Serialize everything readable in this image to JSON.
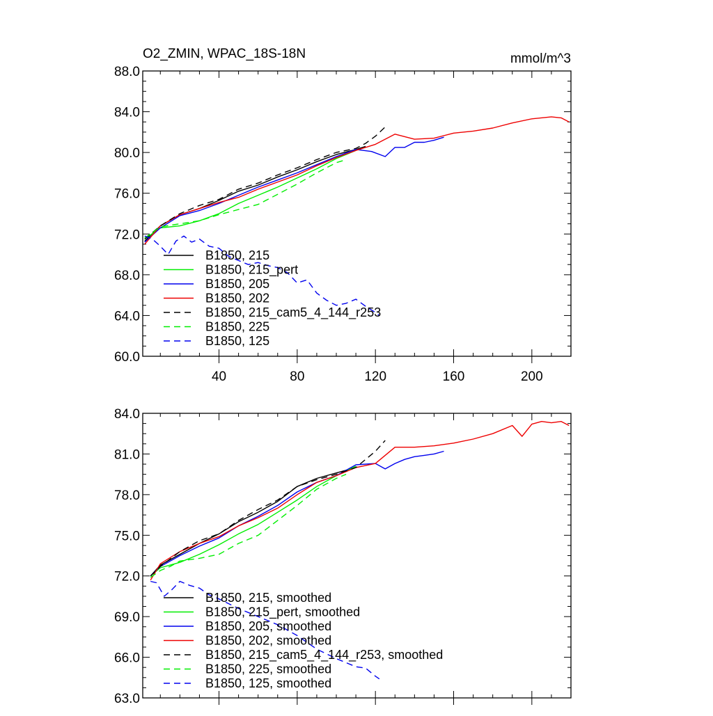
{
  "chart_data": [
    {
      "type": "line",
      "title": "O2_ZMIN, WPAC_18S-18N",
      "units": "mmol/m^3",
      "xlim": [
        1,
        220
      ],
      "ylim": [
        60,
        88
      ],
      "xticks": [
        40,
        80,
        120,
        160,
        200
      ],
      "xtick_labels": [
        "40",
        "80",
        "120",
        "160",
        "200"
      ],
      "yticks": [
        60,
        64,
        68,
        72,
        76,
        80,
        84,
        88
      ],
      "ytick_labels": [
        "60.0",
        "64.0",
        "68.0",
        "72.0",
        "76.0",
        "80.0",
        "84.0",
        "88.0"
      ],
      "legend_position": "bottom-left",
      "series": [
        {
          "name": "B1850, 215",
          "color": "#000000",
          "dash": "solid",
          "x": [
            2,
            10,
            20,
            30,
            40,
            50,
            60,
            70,
            80,
            90,
            100,
            110,
            115
          ],
          "y": [
            71.3,
            72.8,
            73.9,
            74.5,
            75.3,
            76.2,
            76.8,
            77.6,
            78.3,
            79.1,
            79.8,
            80.3,
            80.6
          ]
        },
        {
          "name": "B1850, 215_pert",
          "color": "#00ee00",
          "dash": "solid",
          "x": [
            2,
            10,
            20,
            30,
            40,
            50,
            60,
            70,
            80,
            90,
            100,
            110
          ],
          "y": [
            71.5,
            72.6,
            72.8,
            73.3,
            74.0,
            75.0,
            75.8,
            76.6,
            77.5,
            78.4,
            79.4,
            80.2
          ]
        },
        {
          "name": "B1850, 205",
          "color": "#0000ee",
          "dash": "solid",
          "x": [
            2,
            10,
            20,
            30,
            40,
            50,
            60,
            70,
            80,
            90,
            100,
            110,
            118,
            125,
            130,
            135,
            140,
            145,
            150,
            155
          ],
          "y": [
            71.2,
            72.6,
            73.8,
            74.3,
            75.0,
            75.8,
            76.6,
            77.3,
            78.0,
            78.8,
            79.6,
            80.3,
            80.1,
            79.6,
            80.5,
            80.5,
            81.0,
            81.0,
            81.2,
            81.5
          ]
        },
        {
          "name": "B1850, 202",
          "color": "#ee0000",
          "dash": "solid",
          "x": [
            2,
            10,
            20,
            30,
            40,
            50,
            60,
            70,
            80,
            90,
            100,
            110,
            120,
            130,
            140,
            150,
            160,
            170,
            180,
            190,
            200,
            210,
            215,
            219
          ],
          "y": [
            71.0,
            72.8,
            73.9,
            74.5,
            75.1,
            75.6,
            76.4,
            77.1,
            77.8,
            78.7,
            79.5,
            80.2,
            80.8,
            81.8,
            81.3,
            81.4,
            81.9,
            82.1,
            82.4,
            82.9,
            83.3,
            83.5,
            83.4,
            83.0
          ]
        },
        {
          "name": "B1850, 215_cam5_4_144_r253",
          "color": "#000000",
          "dash": "dashed",
          "x": [
            2,
            10,
            20,
            30,
            40,
            50,
            60,
            70,
            80,
            90,
            100,
            110,
            115,
            120,
            125
          ],
          "y": [
            71.5,
            72.8,
            74.0,
            74.8,
            75.4,
            76.4,
            77.0,
            77.8,
            78.5,
            79.3,
            80.0,
            80.4,
            80.9,
            81.6,
            82.5
          ]
        },
        {
          "name": "B1850, 225",
          "color": "#00ee00",
          "dash": "dashed",
          "x": [
            2,
            10,
            20,
            30,
            40,
            50,
            60,
            70,
            80,
            90,
            100,
            105
          ],
          "y": [
            71.6,
            72.7,
            73.0,
            73.3,
            73.9,
            74.4,
            74.9,
            75.9,
            76.9,
            78.0,
            79.0,
            79.3
          ]
        },
        {
          "name": "B1850, 125",
          "color": "#0000ee",
          "dash": "dashed",
          "x": [
            2,
            6,
            10,
            14,
            18,
            22,
            26,
            30,
            35,
            40,
            45,
            50,
            55,
            60,
            65,
            70,
            75,
            80,
            85,
            90,
            95,
            100,
            105,
            110,
            115,
            120,
            122
          ],
          "y": [
            71.8,
            71.5,
            70.8,
            70.0,
            71.3,
            71.8,
            71.2,
            71.5,
            70.8,
            70.6,
            69.8,
            69.4,
            69.0,
            69.2,
            68.9,
            68.7,
            68.2,
            67.2,
            67.5,
            66.2,
            65.5,
            65.0,
            65.2,
            65.6,
            64.9,
            64.3,
            64.0
          ]
        }
      ]
    },
    {
      "type": "line",
      "title": "",
      "xlim": [
        1,
        220
      ],
      "ylim": [
        63,
        84
      ],
      "yticks": [
        63,
        66,
        69,
        72,
        75,
        78,
        81,
        84
      ],
      "ytick_labels": [
        "63.0",
        "66.0",
        "69.0",
        "72.0",
        "75.0",
        "78.0",
        "81.0",
        "84.0"
      ],
      "legend_position": "bottom-left",
      "series": [
        {
          "name": "B1850, 215, smoothed",
          "color": "#000000",
          "dash": "solid",
          "x": [
            5,
            10,
            20,
            30,
            40,
            50,
            60,
            70,
            80,
            90,
            100,
            110
          ],
          "y": [
            72.0,
            72.8,
            73.6,
            74.4,
            75.1,
            76.0,
            76.7,
            77.5,
            78.6,
            79.2,
            79.6,
            80.0
          ]
        },
        {
          "name": "B1850, 215_pert, smoothed",
          "color": "#00ee00",
          "dash": "solid",
          "x": [
            5,
            10,
            20,
            30,
            40,
            50,
            60,
            70,
            80,
            90,
            100,
            110
          ],
          "y": [
            72.0,
            72.6,
            73.0,
            73.6,
            74.3,
            75.1,
            75.8,
            76.7,
            77.6,
            78.6,
            79.4,
            80.1
          ]
        },
        {
          "name": "B1850, 205, smoothed",
          "color": "#0000ee",
          "dash": "solid",
          "x": [
            5,
            10,
            20,
            30,
            40,
            50,
            60,
            70,
            80,
            90,
            100,
            110,
            120,
            125,
            130,
            135,
            140,
            145,
            150,
            155
          ],
          "y": [
            72.0,
            72.7,
            73.5,
            74.2,
            74.8,
            75.7,
            76.4,
            77.2,
            78.2,
            78.9,
            79.4,
            80.2,
            80.3,
            79.9,
            80.3,
            80.6,
            80.8,
            80.9,
            81.0,
            81.2
          ]
        },
        {
          "name": "B1850, 202, smoothed",
          "color": "#ee0000",
          "dash": "solid",
          "x": [
            5,
            10,
            20,
            30,
            40,
            50,
            60,
            70,
            80,
            90,
            100,
            110,
            120,
            130,
            140,
            150,
            160,
            170,
            180,
            190,
            195,
            200,
            205,
            210,
            215,
            219
          ],
          "y": [
            71.7,
            72.9,
            73.8,
            74.4,
            74.9,
            75.7,
            76.3,
            77.0,
            78.0,
            78.9,
            79.4,
            80.0,
            80.3,
            81.5,
            81.5,
            81.6,
            81.8,
            82.1,
            82.5,
            83.1,
            82.3,
            83.2,
            83.4,
            83.3,
            83.4,
            83.1
          ]
        },
        {
          "name": "B1850, 215_cam5_4_144_r253, smoothed",
          "color": "#000000",
          "dash": "dashed",
          "x": [
            5,
            10,
            20,
            30,
            40,
            50,
            60,
            70,
            80,
            90,
            100,
            110,
            115,
            120,
            125
          ],
          "y": [
            72.0,
            72.7,
            73.8,
            74.6,
            75.1,
            76.1,
            76.9,
            77.6,
            78.6,
            79.1,
            79.5,
            80.0,
            80.6,
            81.2,
            82.0
          ]
        },
        {
          "name": "B1850, 225, smoothed",
          "color": "#00ee00",
          "dash": "dashed",
          "x": [
            5,
            10,
            15,
            20,
            30,
            40,
            50,
            60,
            70,
            80,
            90,
            100,
            105
          ],
          "y": [
            71.9,
            72.4,
            72.7,
            73.1,
            73.3,
            73.6,
            74.4,
            75.0,
            76.1,
            77.2,
            78.4,
            79.2,
            79.5
          ]
        },
        {
          "name": "B1850, 125, smoothed",
          "color": "#0000ee",
          "dash": "dashed",
          "x": [
            5,
            8,
            12,
            16,
            20,
            25,
            30,
            35,
            40,
            50,
            60,
            70,
            80,
            90,
            100,
            110,
            115,
            120,
            122
          ],
          "y": [
            71.6,
            71.5,
            70.5,
            71.0,
            71.6,
            71.3,
            71.1,
            70.6,
            70.3,
            69.6,
            69.0,
            68.4,
            67.6,
            66.6,
            65.9,
            65.3,
            65.2,
            64.6,
            64.4
          ]
        }
      ]
    }
  ]
}
